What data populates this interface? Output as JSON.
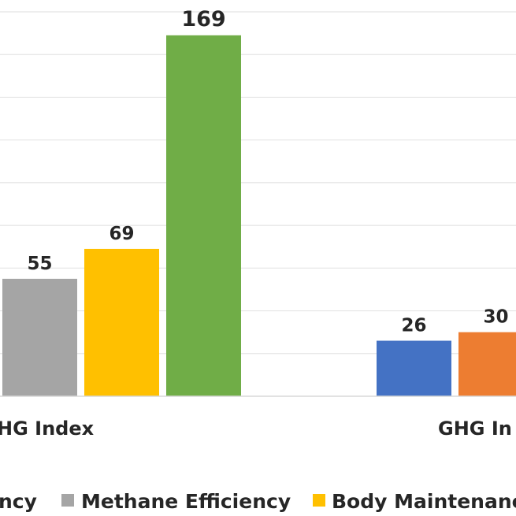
{
  "chart_data": {
    "type": "bar",
    "categories": [
      "GHG Index",
      "GHG In"
    ],
    "series": [
      {
        "name": "ncy",
        "color": "#4472C4",
        "values": [
          null,
          26
        ]
      },
      {
        "name": "Methane Efficiency",
        "color": "#A5A5A5",
        "values": [
          55,
          null
        ]
      },
      {
        "name": "Body Maintenanc",
        "color": "#FFC000",
        "values": [
          69,
          null
        ]
      },
      {
        "name": "",
        "color": "#70AD47",
        "values": [
          169,
          null
        ]
      },
      {
        "name": "",
        "color": "#ED7D31",
        "values": [
          null,
          30
        ]
      }
    ],
    "category_labels": [
      "HG Index",
      "GHG In"
    ],
    "ylim": [
      0,
      180
    ],
    "grid": true,
    "legend": "bottom"
  }
}
